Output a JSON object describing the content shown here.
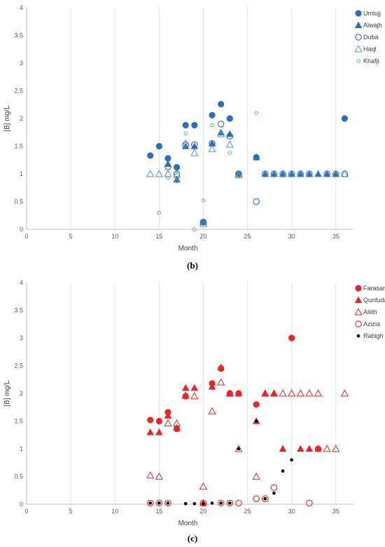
{
  "chart_data": [
    {
      "type": "scatter",
      "panel_label": "(b)",
      "xlabel": "Month",
      "ylabel": "[B] mg/L",
      "xlim": [
        0,
        37
      ],
      "ylim": [
        0,
        4
      ],
      "xticks": [
        "0",
        "5",
        "10",
        "15",
        "20",
        "25",
        "30",
        "35"
      ],
      "yticks": [
        "0",
        "0.5",
        "1",
        "1.5",
        "2",
        "2.5",
        "3",
        "3.5",
        "4"
      ],
      "grid": "vertical gridlines",
      "legend_position": "top-right",
      "series": [
        {
          "name": "Umlujj",
          "marker": "filled-circle",
          "color": "#2e6fb7",
          "points": [
            [
              14,
              1.33
            ],
            [
              15,
              1.5
            ],
            [
              16,
              1.28
            ],
            [
              17,
              1.12
            ],
            [
              18,
              1.88
            ],
            [
              19,
              1.88
            ],
            [
              20,
              0.13
            ],
            [
              21,
              2.06
            ],
            [
              22,
              2.26
            ],
            [
              23,
              2.0
            ],
            [
              24,
              1.0
            ],
            [
              26,
              1.3
            ],
            [
              36,
              2.0
            ]
          ]
        },
        {
          "name": "Alwajh",
          "marker": "filled-triangle",
          "color": "#2e6fb7",
          "points": [
            [
              16,
              1.18
            ],
            [
              17,
              0.9
            ],
            [
              18,
              1.5
            ],
            [
              19,
              1.5
            ],
            [
              20,
              0.13
            ],
            [
              21,
              1.55
            ],
            [
              22,
              1.75
            ],
            [
              23,
              1.72
            ],
            [
              24,
              1.0
            ],
            [
              26,
              1.3
            ],
            [
              27,
              1.0
            ],
            [
              28,
              1.0
            ],
            [
              29,
              1.0
            ],
            [
              30,
              1.0
            ],
            [
              31,
              1.0
            ],
            [
              32,
              1.0
            ],
            [
              33,
              1.0
            ],
            [
              34,
              1.0
            ],
            [
              35,
              1.0
            ]
          ]
        },
        {
          "name": "Duba",
          "marker": "open-circle",
          "color": "#2e6fb7",
          "points": [
            [
              16,
              1.13
            ],
            [
              17,
              1.0
            ],
            [
              18,
              1.53
            ],
            [
              19,
              1.53
            ],
            [
              20,
              0.13
            ],
            [
              21,
              1.55
            ],
            [
              22,
              1.9
            ],
            [
              23,
              1.68
            ],
            [
              24,
              1.0
            ],
            [
              26,
              0.5
            ],
            [
              27,
              1.0
            ],
            [
              28,
              1.0
            ],
            [
              29,
              1.0
            ],
            [
              30,
              1.0
            ],
            [
              31,
              1.0
            ],
            [
              32,
              1.0
            ],
            [
              34,
              1.0
            ],
            [
              35,
              1.0
            ],
            [
              36,
              1.0
            ]
          ]
        },
        {
          "name": "Haql",
          "marker": "open-triangle",
          "color": "#5b8fd6",
          "points": [
            [
              14,
              1.0
            ],
            [
              15,
              1.0
            ],
            [
              16,
              1.0
            ],
            [
              17,
              0.98
            ],
            [
              18,
              1.55
            ],
            [
              19,
              1.38
            ],
            [
              20,
              0.1
            ],
            [
              21,
              1.45
            ],
            [
              22,
              1.72
            ],
            [
              23,
              1.53
            ],
            [
              24,
              0.98
            ],
            [
              27,
              1.0
            ],
            [
              28,
              1.0
            ],
            [
              29,
              1.0
            ],
            [
              30,
              1.0
            ],
            [
              31,
              1.0
            ],
            [
              32,
              1.0
            ],
            [
              33,
              1.0
            ],
            [
              34,
              1.0
            ],
            [
              35,
              1.0
            ],
            [
              36,
              1.0
            ]
          ]
        },
        {
          "name": "Khafji",
          "marker": "small-open-circle",
          "color": "#55b560",
          "points": [
            [
              15,
              0.3
            ],
            [
              16,
              0.93
            ],
            [
              17,
              0.87
            ],
            [
              18,
              1.73
            ],
            [
              19,
              0.0
            ],
            [
              20,
              0.52
            ],
            [
              21,
              1.88
            ],
            [
              23,
              1.38
            ],
            [
              24,
              0.97
            ],
            [
              26,
              2.1
            ]
          ]
        }
      ]
    },
    {
      "type": "scatter",
      "panel_label": "(c)",
      "xlabel": "Month",
      "ylabel": "[B] mg/L",
      "xlim": [
        0,
        37
      ],
      "ylim": [
        0,
        4
      ],
      "xticks": [
        "0",
        "5",
        "10",
        "15",
        "20",
        "25",
        "30",
        "35"
      ],
      "yticks": [
        "0",
        "0.5",
        "1",
        "1.5",
        "2",
        "2.5",
        "3",
        "3.5",
        "4"
      ],
      "grid": "vertical gridlines",
      "legend_position": "top-right",
      "series": [
        {
          "name": "Farasan",
          "marker": "filled-circle",
          "color": "#e8262a",
          "points": [
            [
              14,
              1.52
            ],
            [
              15,
              1.5
            ],
            [
              16,
              1.66
            ],
            [
              17,
              1.36
            ],
            [
              18,
              1.95
            ],
            [
              21,
              2.18
            ],
            [
              22,
              2.45
            ],
            [
              23,
              2.0
            ],
            [
              24,
              2.0
            ],
            [
              26,
              1.8
            ],
            [
              30,
              3.0
            ],
            [
              33,
              1.0
            ]
          ]
        },
        {
          "name": "Qunfudah",
          "marker": "filled-triangle",
          "color": "#e8262a",
          "points": [
            [
              14,
              1.3
            ],
            [
              15,
              1.3
            ],
            [
              16,
              1.6
            ],
            [
              17,
              1.38
            ],
            [
              18,
              2.1
            ],
            [
              19,
              2.1
            ],
            [
              20,
              0.02
            ],
            [
              21,
              2.12
            ],
            [
              22,
              2.47
            ],
            [
              23,
              2.0
            ],
            [
              24,
              2.0
            ],
            [
              26,
              1.5
            ],
            [
              27,
              2.0
            ],
            [
              28,
              2.0
            ],
            [
              29,
              1.0
            ],
            [
              31,
              1.0
            ],
            [
              32,
              1.0
            ],
            [
              33,
              1.0
            ]
          ]
        },
        {
          "name": "Allith",
          "marker": "open-triangle",
          "color": "#e8262a",
          "points": [
            [
              14,
              0.52
            ],
            [
              15,
              0.5
            ],
            [
              16,
              1.46
            ],
            [
              17,
              1.46
            ],
            [
              18,
              1.96
            ],
            [
              19,
              1.95
            ],
            [
              20,
              0.32
            ],
            [
              21,
              1.68
            ],
            [
              22,
              2.2
            ],
            [
              23,
              2.0
            ],
            [
              24,
              1.0
            ],
            [
              26,
              0.5
            ],
            [
              27,
              2.0
            ],
            [
              28,
              2.0
            ],
            [
              29,
              2.0
            ],
            [
              30,
              2.0
            ],
            [
              31,
              2.0
            ],
            [
              32,
              2.0
            ],
            [
              33,
              2.0
            ],
            [
              34,
              1.0
            ],
            [
              35,
              1.0
            ],
            [
              36,
              2.0
            ]
          ]
        },
        {
          "name": "Azizia",
          "marker": "open-circle",
          "color": "#e8262a",
          "points": [
            [
              14,
              0.02
            ],
            [
              15,
              0.02
            ],
            [
              16,
              0.02
            ],
            [
              20,
              0.02
            ],
            [
              22,
              0.02
            ],
            [
              23,
              0.02
            ],
            [
              24,
              0.02
            ],
            [
              26,
              0.1
            ],
            [
              27,
              0.1
            ],
            [
              28,
              0.3
            ],
            [
              32,
              0.02
            ]
          ]
        },
        {
          "name": "Rabigh",
          "marker": "small-filled-circle",
          "color": "#000000",
          "points": [
            [
              14,
              0.02
            ],
            [
              15,
              0.02
            ],
            [
              16,
              0.02
            ],
            [
              18,
              0.01
            ],
            [
              19,
              0.01
            ],
            [
              20,
              0.01
            ],
            [
              21,
              0.02
            ],
            [
              22,
              0.02
            ],
            [
              23,
              0.02
            ],
            [
              24,
              1.0
            ],
            [
              26,
              1.5
            ],
            [
              27,
              0.1
            ],
            [
              28,
              0.2
            ],
            [
              29,
              0.6
            ],
            [
              30,
              0.8
            ]
          ]
        }
      ]
    }
  ]
}
